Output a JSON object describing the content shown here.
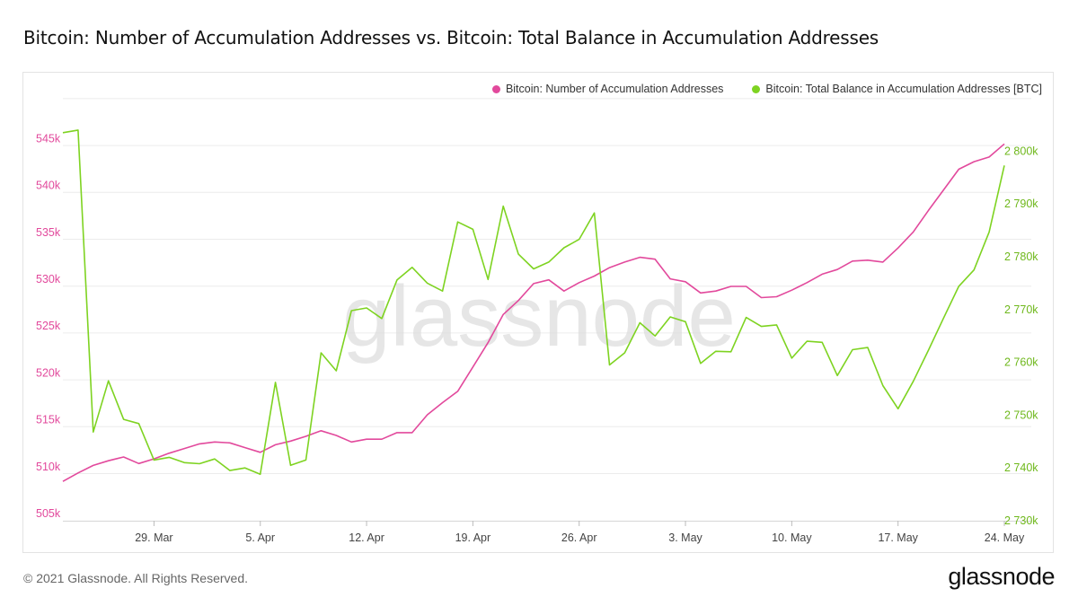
{
  "page": {
    "title": "Bitcoin: Number of Accumulation Addresses vs. Bitcoin: Total Balance in Accumulation Addresses",
    "footer": "© 2021 Glassnode. All Rights Reserved.",
    "brand": "glassnode",
    "watermark": "glassnode"
  },
  "colors": {
    "series_addresses": "#e2499c",
    "series_balance": "#7ed321",
    "grid": "#ececec",
    "axis_text": "#444444"
  },
  "chart_data": {
    "type": "line",
    "grid": true,
    "legend_position": "top-right",
    "x_start_date": "2021-03-23",
    "x_ticks": [
      {
        "day": 6,
        "label": "29. Mar"
      },
      {
        "day": 13,
        "label": "5. Apr"
      },
      {
        "day": 20,
        "label": "12. Apr"
      },
      {
        "day": 27,
        "label": "19. Apr"
      },
      {
        "day": 34,
        "label": "26. Apr"
      },
      {
        "day": 41,
        "label": "3. May"
      },
      {
        "day": 48,
        "label": "10. May"
      },
      {
        "day": 55,
        "label": "17. May"
      },
      {
        "day": 62,
        "label": "24. May"
      }
    ],
    "y_left": {
      "ylim": [
        505000,
        550000
      ],
      "ticks": [
        505000,
        510000,
        515000,
        520000,
        525000,
        530000,
        535000,
        540000,
        545000
      ],
      "labels": [
        "505k",
        "510k",
        "515k",
        "520k",
        "525k",
        "530k",
        "535k",
        "540k",
        "545k"
      ]
    },
    "y_right": {
      "ylim": [
        2730000,
        2810000
      ],
      "ticks": [
        2730000,
        2740000,
        2750000,
        2760000,
        2770000,
        2780000,
        2790000,
        2800000
      ],
      "labels": [
        "2 730k",
        "2 740k",
        "2 750k",
        "2 760k",
        "2 770k",
        "2 780k",
        "2 790k",
        "2 800k"
      ]
    },
    "series": [
      {
        "name": "Bitcoin: Number of Accumulation Addresses",
        "axis": "left",
        "x_step": 1,
        "values": [
          509200,
          510100,
          510900,
          511400,
          511800,
          511100,
          511600,
          512200,
          512700,
          513200,
          513400,
          513300,
          512800,
          512300,
          513100,
          513500,
          514000,
          514600,
          514100,
          513400,
          513700,
          513700,
          514400,
          514400,
          516300,
          517600,
          518800,
          521400,
          524000,
          527000,
          528500,
          530300,
          530700,
          529500,
          530400,
          531100,
          532000,
          532600,
          533100,
          532900,
          530800,
          530500,
          529300,
          529500,
          530000,
          530000,
          528800,
          528900,
          529600,
          530400,
          531300,
          531800,
          532700,
          532800,
          532600,
          534100,
          535800,
          538100,
          540300,
          542500,
          543300,
          543800,
          545200
        ]
      },
      {
        "name": "Bitcoin: Total Balance in Accumulation Addresses [BTC]",
        "axis": "right",
        "x_step": 1,
        "values": [
          2803500,
          2804000,
          2746800,
          2756500,
          2749200,
          2748400,
          2741500,
          2742000,
          2741000,
          2740800,
          2741700,
          2739500,
          2740000,
          2738800,
          2756200,
          2740500,
          2741500,
          2761800,
          2758400,
          2769800,
          2770300,
          2768300,
          2775600,
          2778000,
          2775000,
          2773500,
          2786600,
          2785200,
          2775700,
          2789600,
          2780500,
          2777700,
          2779000,
          2781700,
          2783300,
          2788300,
          2759500,
          2761800,
          2767500,
          2765000,
          2768600,
          2767700,
          2759800,
          2762100,
          2762000,
          2768500,
          2766800,
          2767100,
          2760800,
          2764000,
          2763800,
          2757500,
          2762400,
          2762800,
          2755600,
          2751200,
          2756400,
          2762300,
          2768400,
          2774400,
          2777500,
          2784700,
          2797300
        ]
      }
    ]
  }
}
